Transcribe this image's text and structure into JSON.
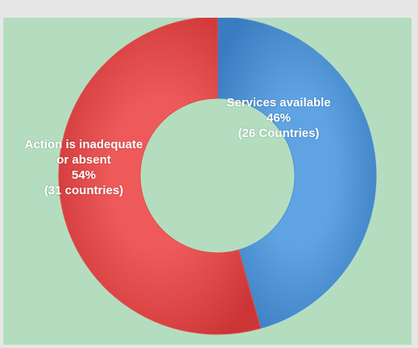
{
  "chart_data": {
    "type": "pie",
    "donut": true,
    "title": "",
    "legend": "none",
    "slices": [
      {
        "label_lines": [
          "Services available"
        ],
        "percent": "46%",
        "count_label": "(26 Countries)",
        "value": 26,
        "color": "#4a8fd2"
      },
      {
        "label_lines": [
          "Action is inadequate",
          "or absent"
        ],
        "percent": "54%",
        "count_label": "(31 countries)",
        "value": 31,
        "color": "#e44848"
      }
    ]
  },
  "colors": {
    "background": "#e6e6e6",
    "plot_area": "#b4ddc0"
  }
}
